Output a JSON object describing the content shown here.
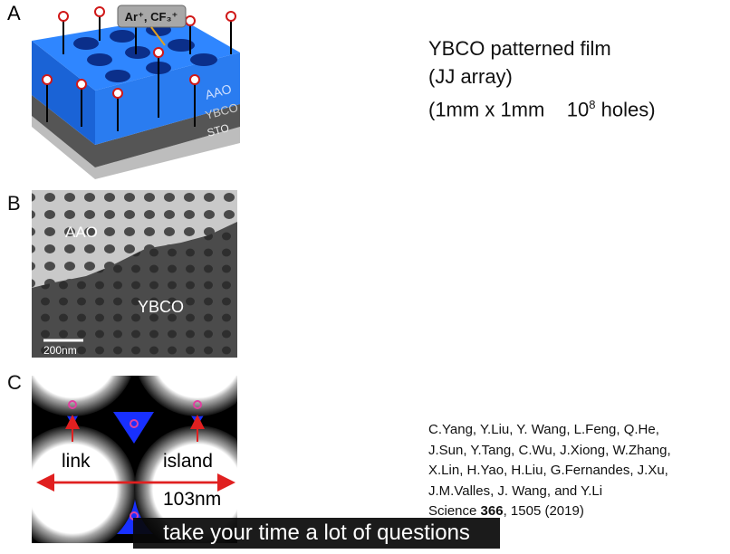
{
  "panels": [
    {
      "label": "A",
      "annotations": [
        "Ar⁺, CF₃⁺",
        "AAO",
        "YBCO",
        "STO"
      ]
    },
    {
      "label": "B",
      "annotations": [
        "AAO",
        "YBCO",
        "200nm"
      ]
    },
    {
      "label": "C",
      "annotations": [
        "link",
        "island",
        "103nm"
      ]
    }
  ],
  "heading": {
    "line1": "YBCO patterned film",
    "line2": "(JJ array)",
    "line3": {
      "text": "(1mm x 1mm",
      "base": "10",
      "exponent": "8",
      "suffix": "holes)"
    }
  },
  "reference": {
    "authors": [
      "C.Yang, Y.Liu, Y. Wang, L.Feng, Q.He,",
      "J.Sun, Y.Tang, C.Wu, J.Xiong, W.Zhang,",
      "X.Lin, H.Yao, H.Liu, G.Fernandes, J.Xu,",
      "J.M.Valles, J. Wang, and Y.Li"
    ],
    "journal": "Science",
    "volume": "366",
    "pages": ", 1505 (2019)"
  },
  "subtitle": "take your time a lot of questions"
}
